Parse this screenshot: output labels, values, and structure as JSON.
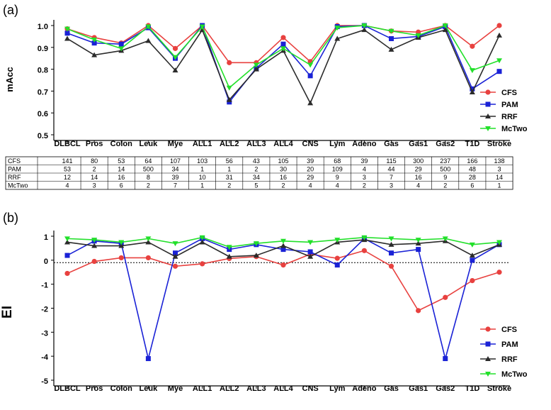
{
  "chart_data": [
    {
      "type": "line",
      "panel_label": "(a)",
      "ylabel": "mAcc",
      "ylim": [
        0.5,
        1.0
      ],
      "yticks": [
        "0.5",
        "0.6",
        "0.7",
        "0.8",
        "0.9",
        "1.0"
      ],
      "categories": [
        "DLBCL",
        "Pros",
        "Colon",
        "Leuk",
        "Mye",
        "ALL1",
        "ALL2",
        "ALL3",
        "ALL4",
        "CNS",
        "Lym",
        "Adeno",
        "Gas",
        "Gas1",
        "Gas2",
        "T1D",
        "Stroke"
      ],
      "legend_position": "right",
      "series": [
        {
          "name": "CFS",
          "color": "#e8413f",
          "marker": "circle",
          "values": [
            0.985,
            0.945,
            0.92,
            1.0,
            0.895,
            1.0,
            0.83,
            0.83,
            0.945,
            0.835,
            1.0,
            1.0,
            0.975,
            0.97,
            1.0,
            0.905,
            1.0
          ]
        },
        {
          "name": "PAM",
          "color": "#1a22d6",
          "marker": "square",
          "values": [
            0.965,
            0.92,
            0.915,
            0.99,
            0.85,
            1.0,
            0.65,
            0.805,
            0.915,
            0.77,
            0.995,
            1.0,
            0.94,
            0.95,
            0.995,
            0.71,
            0.79
          ]
        },
        {
          "name": "RRF",
          "color": "#2b2b2b",
          "marker": "triangle",
          "values": [
            0.94,
            0.865,
            0.885,
            0.93,
            0.795,
            0.98,
            0.66,
            0.8,
            0.885,
            0.645,
            0.94,
            0.98,
            0.89,
            0.945,
            0.98,
            0.695,
            0.955
          ]
        },
        {
          "name": "McTwo",
          "color": "#22e02a",
          "marker": "triangle-down",
          "values": [
            0.985,
            0.935,
            0.895,
            0.995,
            0.855,
            0.995,
            0.715,
            0.82,
            0.895,
            0.82,
            0.99,
            1.0,
            0.975,
            0.955,
            1.0,
            0.795,
            0.84
          ]
        }
      ],
      "table": {
        "rows": [
          {
            "label": "CFS",
            "values": [
              "141",
              "80",
              "53",
              "64",
              "107",
              "103",
              "56",
              "43",
              "105",
              "39",
              "68",
              "39",
              "115",
              "300",
              "237",
              "166",
              "138"
            ]
          },
          {
            "label": "PAM",
            "values": [
              "53",
              "2",
              "14",
              "500",
              "34",
              "1",
              "1",
              "2",
              "30",
              "20",
              "109",
              "4",
              "44",
              "29",
              "500",
              "48",
              "3"
            ]
          },
          {
            "label": "RRF",
            "values": [
              "12",
              "14",
              "16",
              "8",
              "39",
              "10",
              "31",
              "34",
              "16",
              "29",
              "9",
              "3",
              "7",
              "16",
              "9",
              "28",
              "14"
            ]
          },
          {
            "label": "McTwo",
            "values": [
              "4",
              "3",
              "6",
              "2",
              "7",
              "1",
              "2",
              "5",
              "2",
              "4",
              "4",
              "2",
              "3",
              "4",
              "2",
              "6",
              "1"
            ]
          }
        ]
      }
    },
    {
      "type": "line",
      "panel_label": "(b)",
      "ylabel": "EI",
      "ylim": [
        -5,
        1
      ],
      "yticks": [
        "-5",
        "-4",
        "-3",
        "-2",
        "-1",
        "0",
        "1"
      ],
      "reference_line": -0.1,
      "categories": [
        "DLBCL",
        "Pros",
        "Colon",
        "Leuk",
        "Mye",
        "ALL1",
        "ALL2",
        "ALL3",
        "ALL4",
        "CNS",
        "Lym",
        "Adeno",
        "Gas",
        "Gas1",
        "Gas2",
        "T1D",
        "Stroke"
      ],
      "legend_position": "right",
      "series": [
        {
          "name": "CFS",
          "color": "#e8413f",
          "marker": "circle",
          "values": [
            -0.55,
            -0.05,
            0.1,
            0.1,
            -0.25,
            -0.15,
            0.07,
            0.15,
            -0.2,
            0.25,
            0.08,
            0.4,
            -0.25,
            -2.1,
            -1.55,
            -0.85,
            -0.5
          ]
        },
        {
          "name": "PAM",
          "color": "#1a22d6",
          "marker": "square",
          "values": [
            0.2,
            0.8,
            0.7,
            -4.1,
            0.3,
            0.9,
            0.45,
            0.65,
            0.45,
            0.35,
            -0.2,
            0.9,
            0.3,
            0.45,
            -4.1,
            0.0,
            0.65
          ]
        },
        {
          "name": "RRF",
          "color": "#2b2b2b",
          "marker": "triangle",
          "values": [
            0.75,
            0.6,
            0.6,
            0.75,
            0.15,
            0.75,
            0.15,
            0.2,
            0.6,
            0.15,
            0.75,
            0.85,
            0.65,
            0.7,
            0.8,
            0.2,
            0.65
          ]
        },
        {
          "name": "McTwo",
          "color": "#22e02a",
          "marker": "triangle-down",
          "values": [
            0.9,
            0.85,
            0.75,
            0.9,
            0.7,
            0.95,
            0.55,
            0.7,
            0.8,
            0.75,
            0.85,
            0.95,
            0.9,
            0.85,
            0.9,
            0.65,
            0.75
          ]
        }
      ]
    }
  ]
}
